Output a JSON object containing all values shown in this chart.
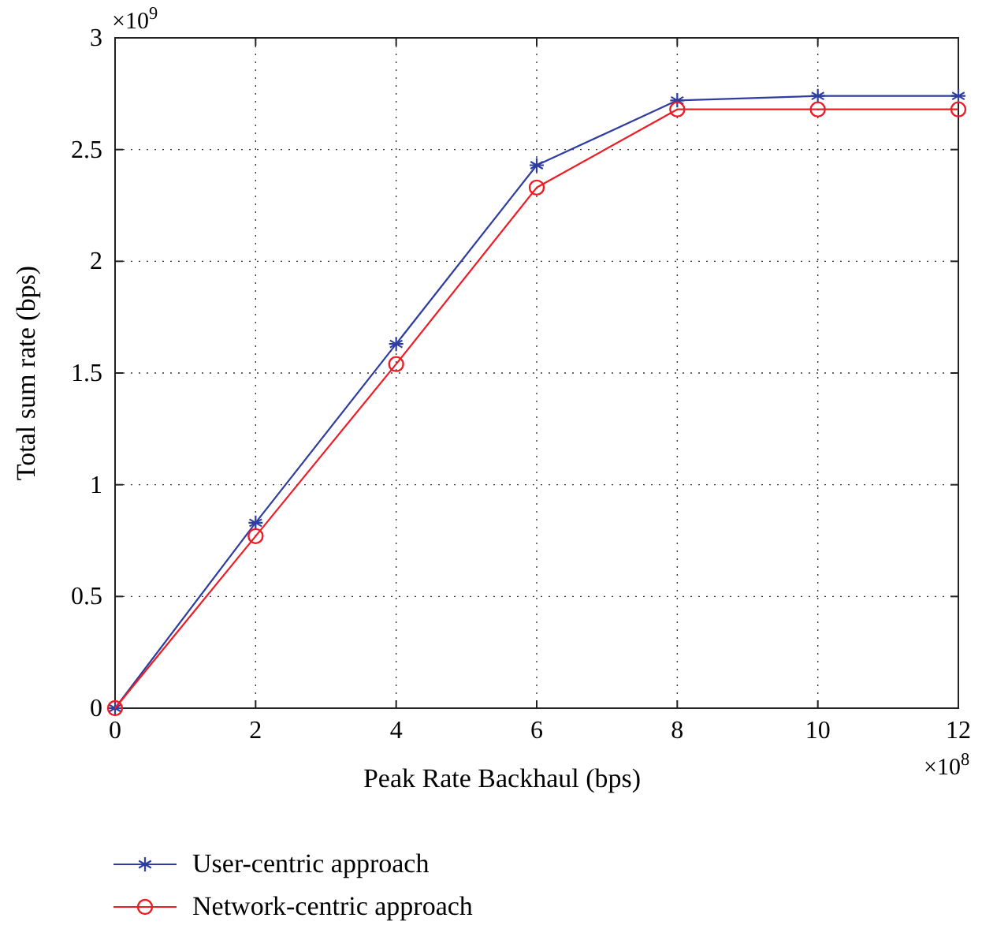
{
  "chart_data": {
    "type": "line",
    "xlabel": "Peak Rate Backhaul (bps)",
    "ylabel": "Total sum rate (bps)",
    "x": [
      0,
      2,
      4,
      6,
      8,
      10,
      12
    ],
    "xlim": [
      0,
      12
    ],
    "xticks": [
      0,
      2,
      4,
      6,
      8,
      10,
      12
    ],
    "ylim": [
      0,
      3
    ],
    "yticks": [
      0,
      0.5,
      1,
      1.5,
      2,
      2.5,
      3
    ],
    "grid": true,
    "legend": "bottom left",
    "line_style": "solid",
    "annotations": [
      "×10$^{9}$",
      "×10$^{8}$"
    ],
    "series": [
      {
        "name": "User-centric approach",
        "color": "#2e3ea0",
        "marker": "cross",
        "values": [
          0,
          0.83,
          1.63,
          2.43,
          2.72,
          2.74,
          2.74
        ]
      },
      {
        "name": "Network-centric approach",
        "color": "#ee1c24",
        "marker": "circle",
        "values": [
          0,
          0.77,
          1.54,
          2.33,
          2.68,
          2.68,
          2.68
        ]
      }
    ]
  }
}
